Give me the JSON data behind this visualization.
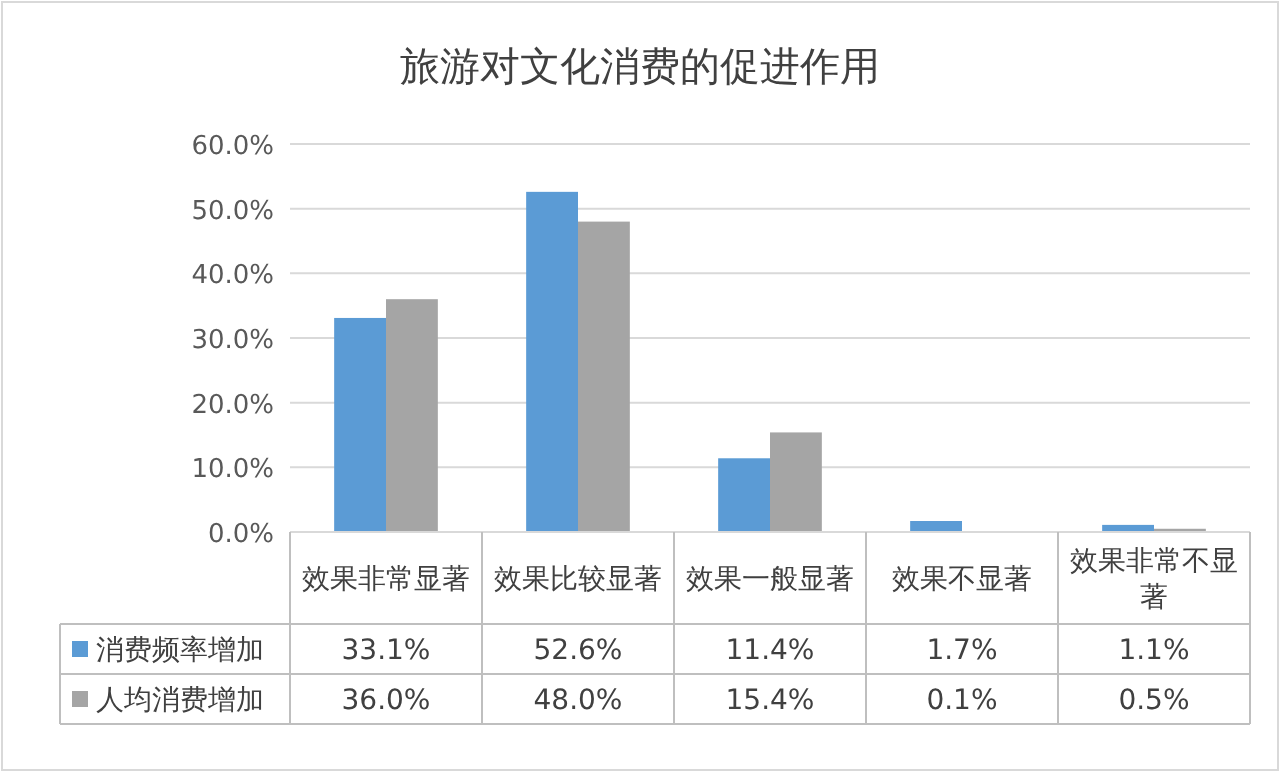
{
  "chart_data": {
    "type": "bar",
    "title": "旅游对文化消费的促进作用",
    "categories": [
      "效果非常显著",
      "效果比较显著",
      "效果一般显著",
      "效果不显著",
      "效果非常不显著"
    ],
    "series": [
      {
        "name": "消费频率增加",
        "color": "#5b9bd5",
        "values": [
          33.1,
          52.6,
          11.4,
          1.7,
          1.1
        ],
        "value_labels": [
          "33.1%",
          "52.6%",
          "11.4%",
          "1.7%",
          "1.1%"
        ]
      },
      {
        "name": "人均消费增加",
        "color": "#a5a5a5",
        "values": [
          36.0,
          48.0,
          15.4,
          0.1,
          0.5
        ],
        "value_labels": [
          "36.0%",
          "48.0%",
          "15.4%",
          "0.1%",
          "0.5%"
        ]
      }
    ],
    "ylim": [
      0,
      60
    ],
    "yticks": [
      {
        "value": 0,
        "label": "0.0%"
      },
      {
        "value": 10,
        "label": "10.0%"
      },
      {
        "value": 20,
        "label": "20.0%"
      },
      {
        "value": 30,
        "label": "30.0%"
      },
      {
        "value": 40,
        "label": "40.0%"
      },
      {
        "value": 50,
        "label": "50.0%"
      },
      {
        "value": 60,
        "label": "60.0%"
      }
    ],
    "grid": "y",
    "legend": "bottom left"
  }
}
